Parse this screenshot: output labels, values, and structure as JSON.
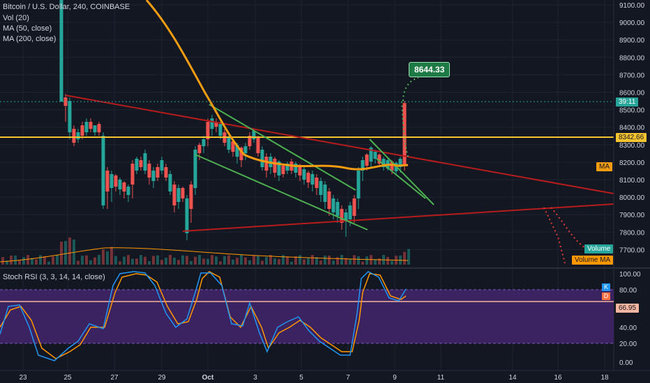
{
  "header": {
    "symbol": "Bitcoin / U.S. Dollar, 240, COINBASE",
    "indicators": [
      "Vol (20)",
      "MA (50, close)",
      "MA (200, close)"
    ]
  },
  "price_axis": {
    "ticks": [
      "9100.00",
      "9000.00",
      "8900.00",
      "8800.00",
      "8700.00",
      "8600.00",
      "8500.00",
      "8400.00",
      "8300.00",
      "8200.00",
      "8100.00",
      "8000.00",
      "7900.00",
      "7800.00",
      "7700.00"
    ],
    "countdown": "39:11",
    "level_tag": "8342.66",
    "ma_tag": "MA",
    "volume_tag": "Volume",
    "volume_ma_tag": "Volume MA"
  },
  "annotation": {
    "target_price": "8644.33"
  },
  "stoch": {
    "title": "Stoch RSI (3, 3, 14, 14, close)",
    "ticks": [
      "100.00",
      "80.00",
      "40.00",
      "20.00",
      "0.00"
    ],
    "current_value": "66.95",
    "k_label": "K",
    "d_label": "D"
  },
  "time_axis": {
    "labels": [
      "23",
      "25",
      "27",
      "29",
      "Oct",
      "3",
      "5",
      "7",
      "9",
      "11",
      "14",
      "16",
      "18"
    ]
  },
  "colors": {
    "background": "#131722",
    "up": "#26a69a",
    "down": "#ef5350",
    "support": "#f4c430",
    "ma": "#f39c12",
    "triangle": "#b71c1c",
    "channel": "#4caf50",
    "stoch_k": "#2196f3",
    "stoch_d": "#ff9800"
  }
}
